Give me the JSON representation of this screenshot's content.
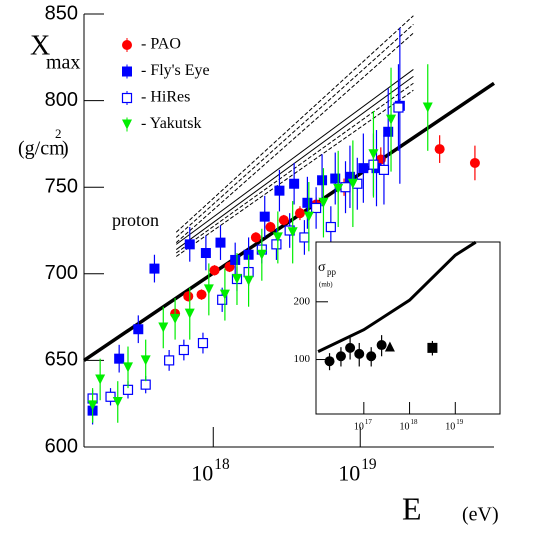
{
  "chart_data": [
    {
      "type": "scatter",
      "xlog": true,
      "ylog": false,
      "y_label": "X",
      "y_label_sub": "max",
      "y_unit": "(g/cm",
      "y_unit_sup": "2",
      "y_unit_end": ")",
      "x_label": "E",
      "x_unit": "(eV)",
      "annotation": "proton",
      "legend": "upper left",
      "xlim": [
        1.32e+17,
        8.13e+19
      ],
      "ylim": [
        600,
        850
      ],
      "xticks": [
        {
          "value": 1e+18,
          "label": "10",
          "exponent": "18"
        },
        {
          "value": 1e+19,
          "label": "10",
          "exponent": "19"
        }
      ],
      "yticks": [
        600,
        650,
        700,
        750,
        800,
        850
      ],
      "series": [
        {
          "color": "#000000",
          "line_style": "solid",
          "line_width": 3.5,
          "x": [
            1.32e+17,
            8.13e+19
          ],
          "values": [
            650,
            810
          ]
        },
        {
          "color": "#000000",
          "line_style": "dashed",
          "line_width": 1,
          "x": [
            5.6e+17,
            2.3e+19
          ],
          "values": [
            724,
            849
          ]
        },
        {
          "color": "#000000",
          "line_style": "dashed",
          "line_width": 1,
          "x": [
            5.6e+17,
            2.3e+19
          ],
          "values": [
            721,
            844
          ]
        },
        {
          "color": "#000000",
          "line_style": "dashed",
          "line_width": 1,
          "x": [
            5.6e+17,
            2.3e+19
          ],
          "values": [
            718,
            839
          ]
        },
        {
          "color": "#000000",
          "line_style": "solid",
          "line_width": 1,
          "x": [
            5.6e+17,
            2.3e+19
          ],
          "values": [
            717,
            818
          ]
        },
        {
          "color": "#000000",
          "line_style": "solid",
          "line_width": 1,
          "x": [
            5.6e+17,
            2.3e+19
          ],
          "values": [
            714,
            814
          ]
        },
        {
          "color": "#000000",
          "line_style": "dashed",
          "line_width": 1,
          "x": [
            5.6e+17,
            2.3e+19
          ],
          "values": [
            712,
            810
          ]
        },
        {
          "color": "#000000",
          "line_style": "dashed",
          "line_width": 1,
          "x": [
            5.6e+17,
            2.3e+19
          ],
          "values": [
            710,
            806
          ]
        },
        {
          "name": "- PAO",
          "color": "#ff0000",
          "marker": "circle",
          "x": [
            5.5e+17,
            6.76e+17,
            8.32e+17,
            1.02e+18,
            1.29e+18,
            1.95e+18,
            2.45e+18,
            3.02e+18,
            3.89e+18,
            5.01e+18,
            7.76e+18,
            1.38e+19,
            3.47e+19,
            6.03e+19
          ],
          "values": [
            677,
            687,
            688,
            702,
            704,
            721,
            727,
            731,
            735,
            740,
            750,
            766,
            772,
            764
          ],
          "errors": [
            3,
            3,
            3,
            3,
            3,
            3,
            3,
            3,
            4,
            4,
            5,
            7,
            8,
            10
          ]
        },
        {
          "name": "- Fly's Eye",
          "color": "#0000ff",
          "marker": "square",
          "x": [
            1.51e+17,
            2.29e+17,
            3.09e+17,
            3.98e+17,
            6.92e+17,
            8.91e+17,
            1.12e+18,
            1.41e+18,
            1.74e+18,
            2.24e+18,
            2.82e+18,
            3.55e+18,
            4.37e+18,
            5.5e+18,
            6.76e+18,
            8.51e+18,
            1.05e+19,
            1.29e+19,
            1.55e+19,
            1.86e+19
          ],
          "values": [
            621,
            651,
            668,
            703,
            717,
            712,
            718,
            708,
            711,
            733,
            748,
            752,
            741,
            754,
            755,
            756,
            761,
            761,
            782,
            797
          ],
          "errors": [
            8,
            8,
            8,
            8,
            10,
            10,
            10,
            10,
            10,
            12,
            12,
            12,
            15,
            15,
            15,
            18,
            20,
            22,
            25,
            45
          ]
        },
        {
          "name": "- HiRes",
          "color": "#0000ff",
          "marker": "open-square",
          "x": [
            1.51e+17,
            2e+17,
            2.63e+17,
            3.47e+17,
            5.01e+17,
            6.31e+17,
            8.51e+17,
            1.15e+18,
            1.45e+18,
            1.74e+18,
            2.14e+18,
            2.69e+18,
            3.31e+18,
            4.17e+18,
            5.01e+18,
            6.31e+18,
            7.94e+18,
            9.55e+18,
            1.23e+19,
            1.45e+19,
            1.82e+19
          ],
          "values": [
            628,
            629,
            633,
            636,
            650,
            656,
            660,
            685,
            697,
            701,
            714,
            717,
            725,
            721,
            738,
            727,
            750,
            752,
            763,
            760,
            796
          ],
          "errors": [
            5,
            5,
            5,
            5,
            6,
            6,
            6,
            7,
            7,
            8,
            8,
            9,
            10,
            10,
            12,
            12,
            15,
            15,
            18,
            20,
            25
          ]
        },
        {
          "name": "- Yakutsk",
          "color": "#00ee00",
          "marker": "triangle-down",
          "x": [
            1.51e+17,
            1.7e+17,
            2.24e+17,
            2.63e+17,
            3.47e+17,
            4.57e+17,
            5.5e+17,
            6.92e+17,
            9.33e+17,
            1.2e+18,
            1.45e+18,
            1.74e+18,
            2.14e+18,
            2.75e+18,
            3.47e+18,
            4.47e+18,
            5.62e+18,
            7.08e+18,
            8.91e+18,
            1.23e+19,
            1.62e+19,
            2.88e+19
          ],
          "values": [
            624,
            639,
            626,
            646,
            650,
            669,
            674,
            677,
            691,
            688,
            697,
            696,
            711,
            721,
            724,
            733,
            741,
            749,
            752,
            769,
            789,
            796
          ],
          "errors": [
            10,
            12,
            12,
            12,
            12,
            12,
            12,
            15,
            15,
            15,
            15,
            15,
            15,
            15,
            18,
            20,
            20,
            22,
            25,
            25,
            30,
            25
          ]
        }
      ]
    },
    {
      "type": "scatter",
      "xlog": true,
      "ylog": true,
      "y_label": "σ",
      "y_label_sub": "pp",
      "y_unit": "(mb)",
      "xlim": [
        9000000000000000.0,
        9.5e+19
      ],
      "ylim": [
        52,
        410
      ],
      "xticks": [
        {
          "value": 1e+17,
          "label": "10",
          "exponent": "17"
        },
        {
          "value": 1e+18,
          "label": "10",
          "exponent": "18"
        },
        {
          "value": 1e+19,
          "label": "10",
          "exponent": "19"
        }
      ],
      "yticks": [
        100,
        200
      ],
      "series": [
        {
          "color": "#000000",
          "line_style": "solid",
          "line_width": 3,
          "x": [
            1e+16,
            1e+17,
            1e+18,
            1e+19,
            2.8e+19
          ],
          "values": [
            110,
            143,
            204,
            350,
            409
          ]
        },
        {
          "color": "#000000",
          "marker": "circle",
          "x": [
            1.78e+16,
            3.16e+16,
            5.01e+16,
            7.94e+16,
            1.45e+17,
            2.45e+17
          ],
          "values": [
            98,
            104,
            115,
            107,
            104,
            119
          ],
          "errors": [
            10,
            12,
            15,
            15,
            12,
            15
          ]
        },
        {
          "color": "#000000",
          "marker": "triangle-up",
          "x": [
            3.72e+17
          ],
          "values": [
            117
          ]
        },
        {
          "color": "#000000",
          "marker": "square",
          "x": [
            3.16e+18
          ],
          "values": [
            115
          ],
          "errors": [
            10
          ]
        }
      ]
    }
  ]
}
